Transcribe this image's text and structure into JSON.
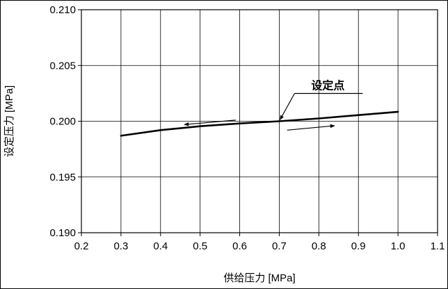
{
  "chart_data": {
    "type": "line",
    "title": "",
    "xlabel": "供给压力 [MPa]",
    "ylabel": "设定压力 [MPa]",
    "xlim": [
      0.2,
      1.1
    ],
    "ylim": [
      0.19,
      0.21
    ],
    "x_ticks": [
      0.2,
      0.3,
      0.4,
      0.5,
      0.6,
      0.7,
      0.8,
      0.9,
      1.0,
      1.1
    ],
    "x_tick_labels": [
      "0.2",
      "0.3",
      "0.4",
      "0.5",
      "0.6",
      "0.7",
      "0.8",
      "0.9",
      "1.0",
      "1.1"
    ],
    "y_ticks": [
      0.19,
      0.195,
      0.2,
      0.205,
      0.21
    ],
    "y_tick_labels": [
      "0.190",
      "0.195",
      "0.200",
      "0.205",
      "0.210"
    ],
    "grid": true,
    "series": [
      {
        "x": [
          0.3,
          0.4,
          0.5,
          0.6,
          0.7,
          0.8,
          0.9,
          1.0
        ],
        "values": [
          0.1987,
          0.1992,
          0.19955,
          0.1998,
          0.2,
          0.20025,
          0.20055,
          0.20085
        ],
        "color": "#000000"
      }
    ],
    "annotations": [
      {
        "text": "设定点",
        "x": 0.7,
        "y": 0.2
      }
    ],
    "arrows": [
      {
        "direction": "left",
        "from": [
          0.59,
          0.2001
        ],
        "to": [
          0.46,
          0.1997
        ]
      },
      {
        "direction": "right",
        "from": [
          0.72,
          0.1992
        ],
        "to": [
          0.84,
          0.1996
        ]
      }
    ]
  }
}
